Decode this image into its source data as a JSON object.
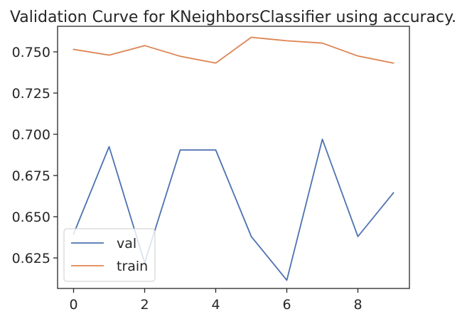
{
  "chart_data": {
    "type": "line",
    "title": "Validation Curve for KNeighborsClassifier using accuracy.",
    "xlabel": "",
    "ylabel": "",
    "x": [
      0,
      1,
      2,
      3,
      4,
      5,
      6,
      7,
      8,
      9
    ],
    "xlim": [
      -0.45,
      9.45
    ],
    "ylim": [
      0.6065,
      0.7655
    ],
    "xticks": [
      0,
      2,
      4,
      6,
      8
    ],
    "xtick_labels": [
      "0",
      "2",
      "4",
      "6",
      "8"
    ],
    "yticks": [
      0.625,
      0.65,
      0.675,
      0.7,
      0.725,
      0.75
    ],
    "ytick_labels": [
      "0.625",
      "0.650",
      "0.675",
      "0.700",
      "0.725",
      "0.750"
    ],
    "grid": false,
    "legend_position": "lower-left",
    "series": [
      {
        "name": "val",
        "color": "#4c72b0",
        "values": [
          0.6395,
          0.6925,
          0.622,
          0.6905,
          0.6905,
          0.638,
          0.6115,
          0.697,
          0.638,
          0.6645
        ]
      },
      {
        "name": "train",
        "color": "#dd8452",
        "values": [
          0.7515,
          0.748,
          0.7538,
          0.7473,
          0.7432,
          0.7588,
          0.7567,
          0.7553,
          0.7475,
          0.7432
        ]
      }
    ]
  }
}
